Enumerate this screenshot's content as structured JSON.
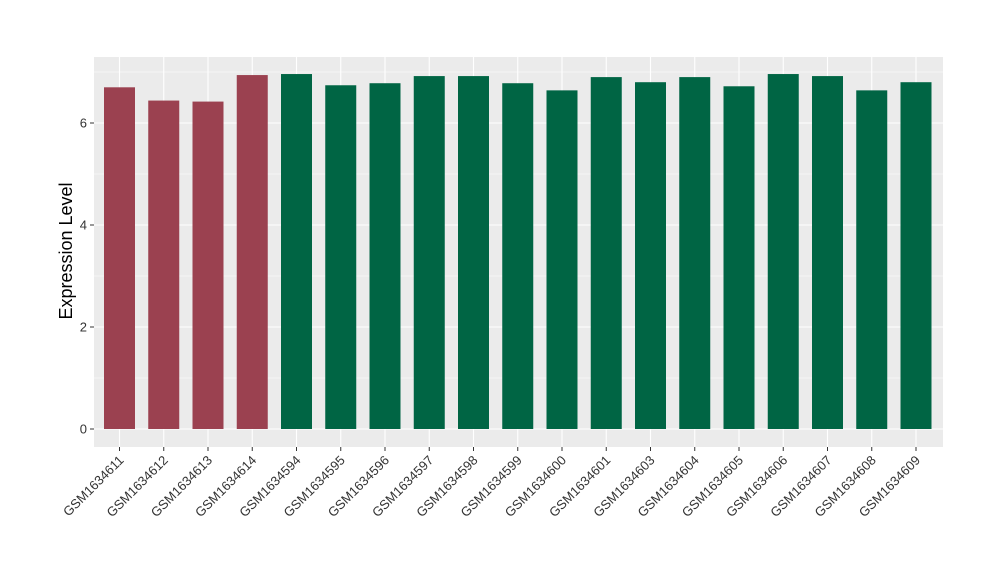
{
  "chart_data": {
    "type": "bar",
    "title": "",
    "xlabel": "",
    "ylabel": "Expression Level",
    "ylim": [
      0,
      7.2
    ],
    "yticks": [
      0,
      2,
      4,
      6
    ],
    "grid": true,
    "categories": [
      "GSM1634611",
      "GSM1634612",
      "GSM1634613",
      "GSM1634614",
      "GSM1634594",
      "GSM1634595",
      "GSM1634596",
      "GSM1634597",
      "GSM1634598",
      "GSM1634599",
      "GSM1634600",
      "GSM1634601",
      "GSM1634603",
      "GSM1634604",
      "GSM1634605",
      "GSM1634606",
      "GSM1634607",
      "GSM1634608",
      "GSM1634609"
    ],
    "values": [
      6.7,
      6.44,
      6.42,
      6.94,
      6.96,
      6.74,
      6.78,
      6.92,
      6.92,
      6.78,
      6.64,
      6.9,
      6.8,
      6.9,
      6.72,
      6.96,
      6.92,
      6.64,
      6.8
    ],
    "groups": [
      "a",
      "a",
      "a",
      "a",
      "b",
      "b",
      "b",
      "b",
      "b",
      "b",
      "b",
      "b",
      "b",
      "b",
      "b",
      "b",
      "b",
      "b",
      "b"
    ],
    "colors": {
      "a": "#9b4150",
      "b": "#006544"
    },
    "panel_background": "#ebebeb",
    "grid_color": "#ffffff"
  }
}
